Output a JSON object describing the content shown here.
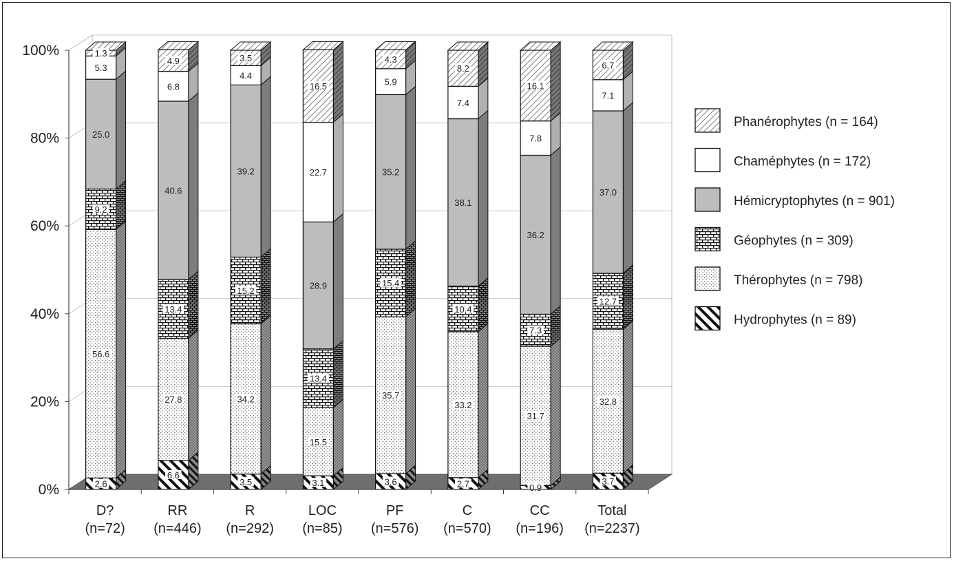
{
  "chart_data": {
    "type": "bar",
    "stacked": true,
    "percent": true,
    "ylim": [
      0,
      100
    ],
    "y_ticks": [
      "0%",
      "20%",
      "40%",
      "60%",
      "80%",
      "100%"
    ],
    "grid": true,
    "legend_position": "right",
    "categories": [
      [
        "D?",
        "(n=72)"
      ],
      [
        "RR",
        "(n=446)"
      ],
      [
        "R",
        "(n=292)"
      ],
      [
        "LOC",
        "(n=85)"
      ],
      [
        "PF",
        "(n=576)"
      ],
      [
        "C",
        "(n=570)"
      ],
      [
        "CC",
        "(n=196)"
      ],
      [
        "Total",
        "(n=2237)"
      ]
    ],
    "series": [
      {
        "name": "Hydrophytes (n = 89)",
        "pattern": "hydro",
        "values": [
          2.6,
          6.6,
          3.5,
          3.1,
          3.6,
          2.7,
          0.9,
          3.7
        ],
        "labels": [
          "2.6",
          "6.6",
          "3.5",
          "3.1",
          "3.6",
          "2.7",
          "0.9",
          "3.7"
        ]
      },
      {
        "name": "Thérophytes (n = 798)",
        "pattern": "thero",
        "values": [
          56.6,
          27.8,
          34.2,
          15.5,
          35.7,
          33.2,
          31.7,
          32.8
        ],
        "labels": [
          "56.6",
          "27.8",
          "34.2",
          "15.5",
          "35.7",
          "33.2",
          "31.7",
          "32.8"
        ]
      },
      {
        "name": "Géophytes (n = 309)",
        "pattern": "geo",
        "values": [
          9.2,
          13.4,
          15.2,
          13.4,
          15.4,
          10.4,
          7.3,
          12.7
        ],
        "labels": [
          "9.2",
          "13.4",
          "15.2",
          "13.4",
          "15.4",
          "10.4",
          "7.3",
          "12.7"
        ]
      },
      {
        "name": "Hémicryptophytes (n = 901)",
        "pattern": "hemi",
        "values": [
          25.0,
          40.6,
          39.2,
          28.9,
          35.2,
          38.1,
          36.2,
          37.0
        ],
        "labels": [
          "25.0",
          "40.6",
          "39.2",
          "28.9",
          "35.2",
          "38.1",
          "36.2",
          "37.0"
        ]
      },
      {
        "name": "Chaméphytes (n = 172)",
        "pattern": "cham",
        "values": [
          5.3,
          6.8,
          4.4,
          22.7,
          5.9,
          7.4,
          7.8,
          7.1
        ],
        "labels": [
          "5.3",
          "6.8",
          "4.4",
          "22.7",
          "5.9",
          "7.4",
          "7.8",
          "7.1"
        ]
      },
      {
        "name": "Phanérophytes (n = 164)",
        "pattern": "phan",
        "values": [
          1.3,
          4.9,
          3.5,
          16.5,
          4.3,
          8.2,
          16.1,
          6.7
        ],
        "labels": [
          "1.3",
          "4.9",
          "3.5",
          "16.5",
          "4.3",
          "8.2",
          "16.1",
          "6.7"
        ]
      }
    ],
    "legend_order": [
      "Phanérophytes (n = 164)",
      "Chaméphytes (n = 172)",
      "Hémicryptophytes (n = 901)",
      "Géophytes (n = 309)",
      "Thérophytes (n = 798)",
      "Hydrophytes (n = 89)"
    ]
  }
}
